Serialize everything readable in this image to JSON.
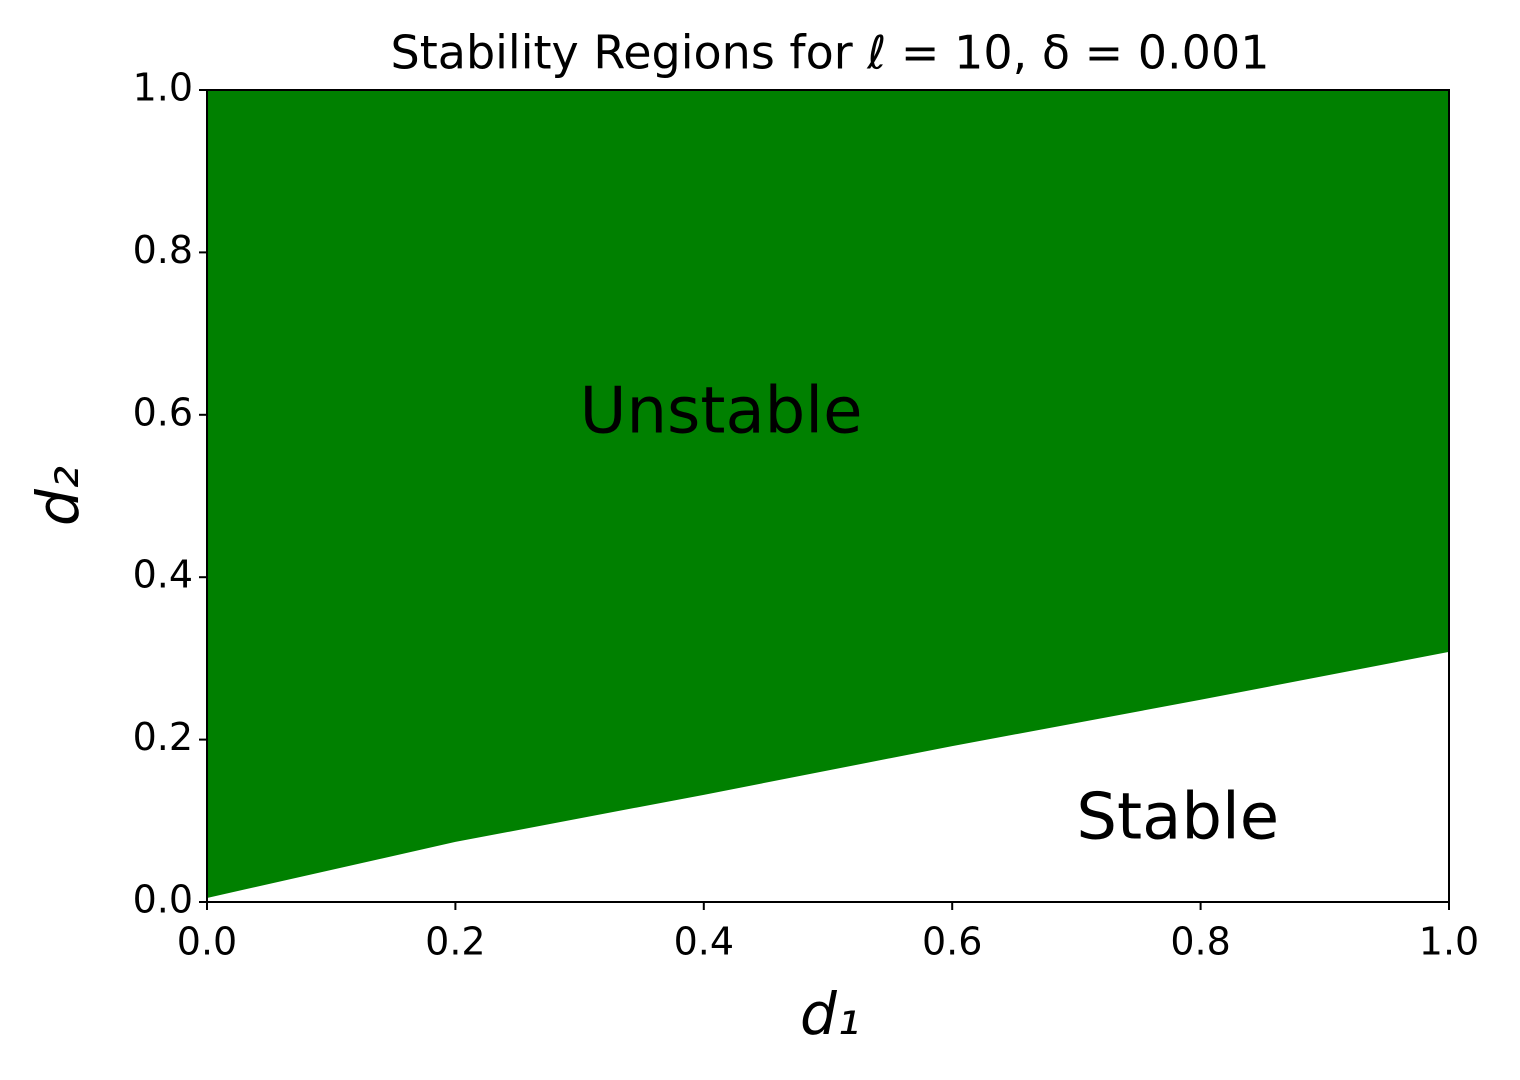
{
  "chart_data": {
    "type": "area",
    "title": "Stability Regions for ℓ = 10, δ = 0.001",
    "x_label": "d₁",
    "y_label": "d₂",
    "x": [
      0,
      0.2,
      0.4,
      0.6,
      0.8,
      1.0
    ],
    "series": [
      {
        "name": "Unstable",
        "color": "#008000",
        "values": [
          0.005,
          0.074,
          0.132,
          0.192,
          0.249,
          0.308
        ]
      }
    ],
    "xlim": [
      0,
      1
    ],
    "ylim": [
      0,
      1
    ],
    "xticks": [
      {
        "value": 0,
        "label": "0.0"
      },
      0.2,
      0.4,
      0.6,
      0.8,
      {
        "value": 1,
        "label": "1.0"
      }
    ],
    "yticks": [
      {
        "value": 0,
        "label": "0.0"
      },
      0.2,
      0.4,
      0.6,
      0.8,
      {
        "value": 1,
        "label": "1.0"
      }
    ],
    "annotations": [
      {
        "text": "Unstable",
        "x": 0.3,
        "y": 0.6,
        "color": "#ffffff"
      },
      {
        "text": "Stable",
        "x": 0.7,
        "y": 0.1,
        "color": "#000000"
      }
    ]
  }
}
